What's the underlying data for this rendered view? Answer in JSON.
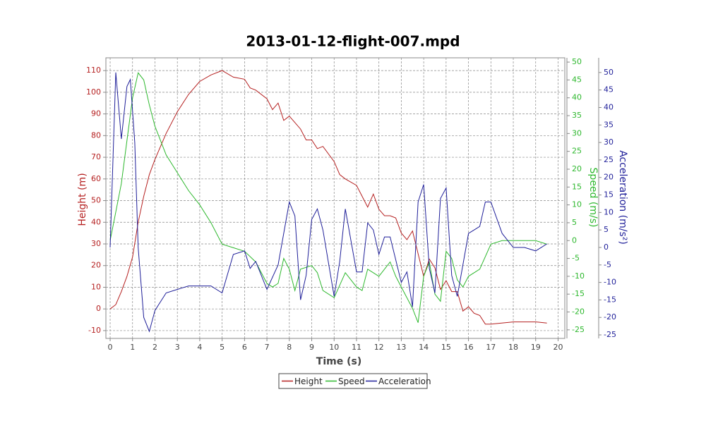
{
  "chart_data": {
    "type": "line",
    "title": "2013-01-12-flight-007.mpd",
    "x_label": "Time (s)",
    "y_label": "Height (m)",
    "y2_label": "Speed (m/s)",
    "y3_label": "Acceleration (m/s²)",
    "xlim": [
      -0.19,
      20.3
    ],
    "xticks": [
      0,
      1,
      2,
      3,
      4,
      5,
      6,
      7,
      8,
      9,
      10,
      11,
      12,
      13,
      14,
      15,
      16,
      17,
      18,
      19,
      20
    ],
    "ylim": [
      -13.6,
      115.9
    ],
    "yticks": [
      -10,
      0,
      10,
      20,
      30,
      40,
      50,
      60,
      70,
      80,
      90,
      100,
      110
    ],
    "y2lim": [
      -27.4,
      51.2
    ],
    "y2ticks": [
      -25,
      -20,
      -15,
      -10,
      -5,
      0,
      5,
      10,
      15,
      20,
      25,
      30,
      35,
      40,
      45,
      50
    ],
    "y3lim": [
      -26,
      54.2
    ],
    "y3ticks": [
      -25,
      -20,
      -15,
      -10,
      -5,
      0,
      5,
      10,
      15,
      20,
      25,
      30,
      35,
      40,
      45,
      50
    ],
    "grid": true,
    "legend": "bottom",
    "series": [
      {
        "name": "Height",
        "color": "#b52020",
        "axis": "y",
        "x": [
          0,
          0.25,
          0.5,
          0.75,
          1,
          1.25,
          1.5,
          1.75,
          2,
          2.5,
          3,
          3.5,
          4,
          4.5,
          5,
          5.5,
          6,
          6.25,
          6.5,
          7,
          7.25,
          7.5,
          7.75,
          8,
          8.5,
          8.75,
          9,
          9.25,
          9.5,
          10,
          10.25,
          10.5,
          11,
          11.25,
          11.5,
          11.75,
          12,
          12.25,
          12.5,
          12.75,
          13,
          13.25,
          13.5,
          14,
          14.25,
          14.5,
          14.75,
          15,
          15.25,
          15.5,
          15.75,
          16,
          16.25,
          16.5,
          16.75,
          17,
          18,
          18.5,
          19,
          19.5
        ],
        "values": [
          0,
          2,
          8,
          15,
          24,
          40,
          52,
          62,
          69,
          81,
          91,
          99,
          105,
          108,
          110,
          107,
          106,
          102,
          101,
          97,
          92,
          95,
          87,
          89,
          83,
          78,
          78,
          74,
          75,
          68,
          62,
          60,
          57,
          52,
          47,
          53,
          46,
          43,
          43,
          42,
          35,
          32,
          36,
          15,
          23,
          19,
          9,
          13,
          8,
          8,
          -1,
          1,
          -2,
          -3,
          -7,
          -7,
          -6,
          -6,
          -6,
          -6.5
        ]
      },
      {
        "name": "Speed",
        "color": "#2eb82e",
        "axis": "y2",
        "x": [
          0,
          0.25,
          0.5,
          0.75,
          1,
          1.25,
          1.5,
          1.75,
          2,
          2.5,
          3,
          3.5,
          4,
          4.5,
          5,
          5.5,
          6,
          6.5,
          7,
          7.25,
          7.5,
          7.75,
          8,
          8.25,
          8.5,
          9,
          9.25,
          9.5,
          10,
          10.5,
          11,
          11.25,
          11.5,
          12,
          12.25,
          12.5,
          12.75,
          13,
          13.5,
          13.75,
          14,
          14.25,
          14.5,
          14.75,
          15,
          15.25,
          15.5,
          15.75,
          16,
          16.5,
          17,
          17.5,
          18,
          18.5,
          19,
          19.5
        ],
        "values": [
          0,
          8,
          16,
          28,
          40,
          47,
          45,
          38,
          32,
          24,
          19,
          14,
          10,
          5,
          -1,
          -2,
          -3,
          -6,
          -12,
          -13,
          -12,
          -5,
          -8,
          -14,
          -8,
          -7,
          -9,
          -14,
          -16,
          -9,
          -13,
          -14,
          -8,
          -10,
          -8,
          -6,
          -10,
          -13,
          -19,
          -23,
          -10,
          -6,
          -15,
          -17,
          -3,
          -5,
          -11,
          -13,
          -10,
          -8,
          -1,
          0,
          0,
          0,
          0,
          -1
        ]
      },
      {
        "name": "Acceleration",
        "color": "#1f1f99",
        "axis": "y3",
        "x": [
          0,
          0.25,
          0.5,
          0.75,
          0.9,
          1.1,
          1.25,
          1.5,
          1.75,
          2,
          2.5,
          3,
          3.5,
          4,
          4.5,
          5,
          5.5,
          6,
          6.25,
          6.5,
          7,
          7.5,
          8,
          8.25,
          8.5,
          8.75,
          9,
          9.25,
          9.5,
          10,
          10.25,
          10.5,
          11,
          11.25,
          11.5,
          11.75,
          12,
          12.25,
          12.5,
          13,
          13.25,
          13.5,
          13.75,
          14,
          14.25,
          14.5,
          14.75,
          15,
          15.25,
          15.5,
          16,
          16.25,
          16.5,
          16.75,
          17,
          17.5,
          18,
          18.5,
          19,
          19.5
        ],
        "values": [
          0,
          50,
          31,
          46,
          48,
          30,
          0,
          -20,
          -24,
          -18,
          -13,
          -12,
          -11,
          -11,
          -11,
          -13,
          -2,
          -1,
          -6,
          -4,
          -12,
          -5,
          13,
          9,
          -15,
          -8,
          8,
          11,
          5,
          -14,
          -4,
          11,
          -7,
          -7,
          7,
          5,
          -2,
          3,
          3,
          -10,
          -7,
          -17,
          13,
          18,
          -6,
          -13,
          14,
          17,
          -8,
          -14,
          4,
          5,
          6,
          13,
          13,
          4,
          0,
          0,
          -1,
          1
        ]
      }
    ]
  }
}
